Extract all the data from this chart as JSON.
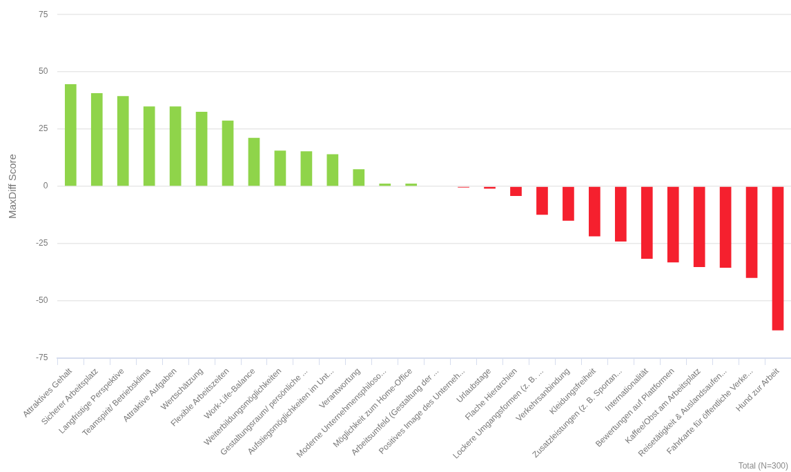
{
  "chart_data": {
    "type": "bar",
    "ylabel": "MaxDiff Score",
    "categories": [
      "Attraktives Gehalt",
      "Sicherer Arbeitsplatz",
      "Langfristige Perspektive",
      "Teamspirit/ Betriebsklima",
      "Attraktive Aufgaben",
      "Wertschätzung",
      "Flexible Arbeitszeiten",
      "Work-Life-Balance",
      "Weiterbildungsmöglichkeiten",
      "Gestaltungsraum/ persönliche ...",
      "Aufstiegsmöglichkeiten im Unt...",
      "Verantwortung",
      "Moderne Unternehmensphiloso...",
      "Möglichkeit zum Home-Office",
      "Arbeitsumfeld (Gestaltung der ...",
      "Positives Image des Unterneh...",
      "Urlaubstage",
      "Flache Hierarchien",
      "Lockere Umgangsformen (z. B. ...",
      "Verkehrsanbindung",
      "Kleidungsfreiheit",
      "Zusatzleistungen (z. B. Sportan...",
      "Internationalität",
      "Bewertungen auf Plattformen",
      "Kaffee/Obst am Arbeitsplatz",
      "Reisetätigkeit & Auslandsaufen...",
      "Fahrkarte für öffentliche Verke...",
      "Hund zur Arbeit"
    ],
    "values": [
      44.6,
      40.7,
      39.4,
      34.9,
      34.9,
      32.6,
      28.7,
      21.2,
      15.6,
      15.3,
      14,
      7.5,
      1.2,
      1.2,
      0,
      -0.5,
      -1,
      -4.2,
      -12.4,
      -15,
      -21.8,
      -24.1,
      -31.6,
      -33.2,
      -35.2,
      -35.5,
      -40,
      -62.9
    ],
    "colors": [
      "#8fd44a",
      "#8fd44a",
      "#8fd44a",
      "#8fd44a",
      "#8fd44a",
      "#8fd44a",
      "#8fd44a",
      "#8fd44a",
      "#8fd44a",
      "#8fd44a",
      "#8fd44a",
      "#8fd44a",
      "#8fd44a",
      "#8fd44a",
      "#8fd44a",
      "#f5202e",
      "#f5202e",
      "#f5202e",
      "#f5202e",
      "#f5202e",
      "#f5202e",
      "#f5202e",
      "#f5202e",
      "#f5202e",
      "#f5202e",
      "#f5202e",
      "#f5202e",
      "#f5202e"
    ],
    "ylim": [
      -75,
      75
    ],
    "yticks": [
      -75,
      -50,
      -25,
      0,
      25,
      50,
      75
    ],
    "grid": "y",
    "annotations": [
      "Total (N=300)"
    ]
  }
}
